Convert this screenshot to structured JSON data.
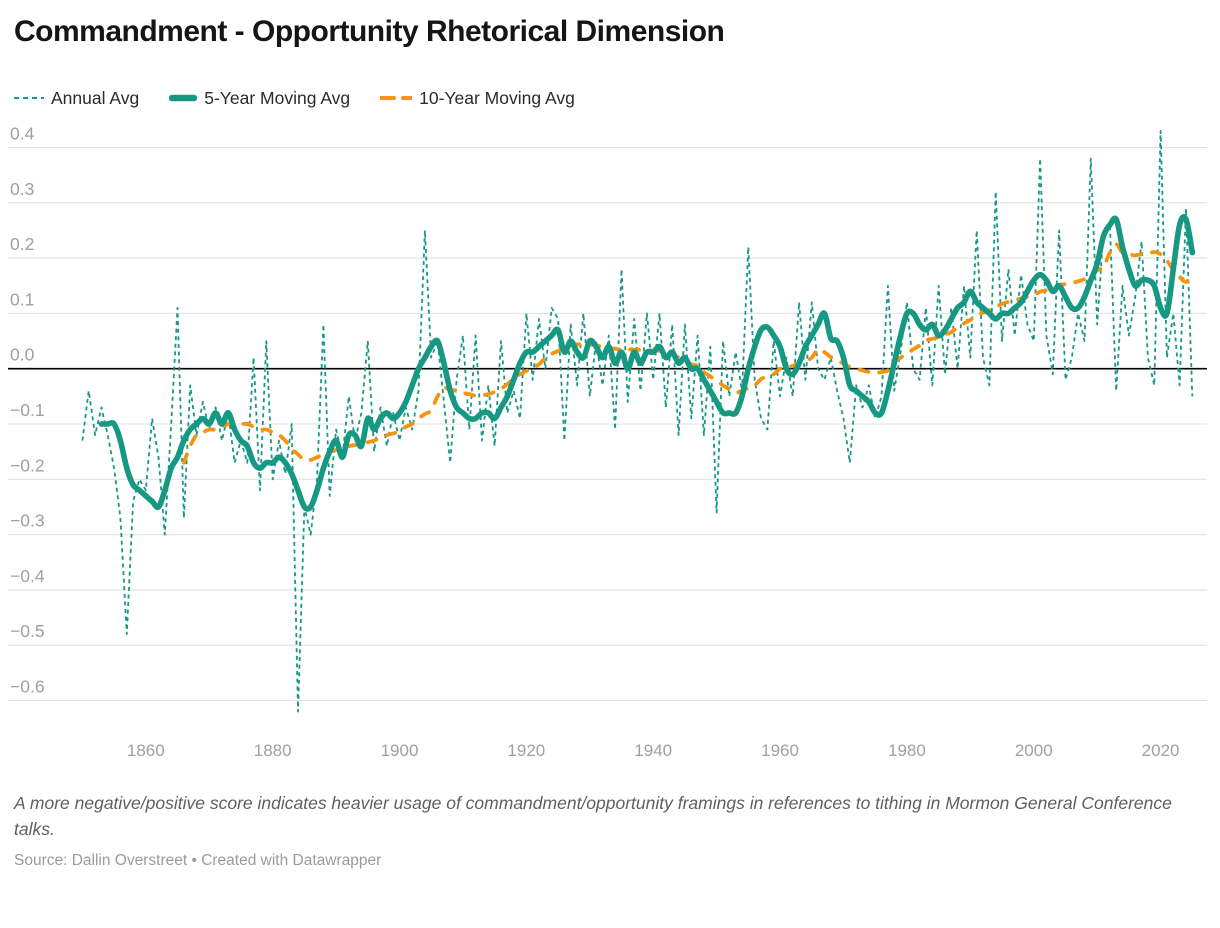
{
  "title": "Commandment - Opportunity Rhetorical Dimension",
  "legend": {
    "items": [
      {
        "label": "Annual Avg"
      },
      {
        "label": "5-Year Moving Avg"
      },
      {
        "label": "10-Year Moving Avg"
      }
    ]
  },
  "note": "A more negative/positive score indicates heavier usage of commandment/opportunity framings in references to tithing in Mormon General Conference talks.",
  "source": "Source: Dallin Overstreet • Created with Datawrapper",
  "colors": {
    "teal": "#179883",
    "orange": "#f4940f",
    "grid": "#e2e2e2",
    "zero": "#000000",
    "axis_text": "#a0a0a0"
  },
  "chart_data": {
    "type": "line",
    "title": "Commandment - Opportunity Rhetorical Dimension",
    "xlabel": "",
    "ylabel": "",
    "x_ticks": [
      1860,
      1880,
      1900,
      1920,
      1940,
      1960,
      1980,
      2000,
      2020
    ],
    "y_ticks": [
      0.4,
      0.3,
      0.2,
      0.1,
      0.0,
      -0.1,
      -0.2,
      -0.3,
      -0.4,
      -0.5,
      -0.6
    ],
    "ylim": [
      -0.66,
      0.45
    ],
    "xlim": [
      1848,
      2027
    ],
    "grid": true,
    "zero_line": true,
    "legend_position": "top",
    "series": [
      {
        "name": "Annual Avg",
        "style": "dashed-thin",
        "start_year": 1850,
        "values": [
          -0.13,
          -0.04,
          -0.12,
          -0.07,
          -0.12,
          -0.18,
          -0.27,
          -0.48,
          -0.24,
          -0.2,
          -0.22,
          -0.09,
          -0.16,
          -0.3,
          -0.1,
          0.11,
          -0.27,
          -0.03,
          -0.12,
          -0.06,
          -0.11,
          -0.07,
          -0.13,
          -0.08,
          -0.17,
          -0.13,
          -0.17,
          0.02,
          -0.22,
          0.05,
          -0.2,
          -0.13,
          -0.19,
          -0.1,
          -0.62,
          -0.25,
          -0.3,
          -0.2,
          0.08,
          -0.23,
          -0.11,
          -0.16,
          -0.05,
          -0.13,
          -0.08,
          0.05,
          -0.15,
          -0.07,
          -0.14,
          -0.08,
          -0.13,
          -0.07,
          -0.11,
          -0.04,
          0.25,
          0.02,
          0.05,
          -0.06,
          -0.17,
          -0.02,
          0.06,
          -0.11,
          0.06,
          -0.13,
          -0.03,
          -0.14,
          0.05,
          -0.08,
          -0.04,
          -0.09,
          0.1,
          -0.02,
          0.09,
          0.0,
          0.11,
          0.09,
          -0.13,
          0.08,
          -0.03,
          0.1,
          -0.05,
          0.05,
          -0.03,
          0.06,
          -0.11,
          0.18,
          -0.06,
          0.09,
          -0.04,
          0.1,
          -0.02,
          0.1,
          -0.07,
          0.08,
          -0.12,
          0.08,
          -0.09,
          0.06,
          -0.12,
          0.04,
          -0.26,
          0.05,
          -0.05,
          0.03,
          -0.04,
          0.22,
          -0.02,
          -0.09,
          -0.11,
          0.05,
          -0.05,
          0.02,
          -0.05,
          0.12,
          -0.02,
          0.12,
          0.0,
          -0.02,
          0.02,
          -0.04,
          -0.09,
          -0.17,
          -0.03,
          -0.07,
          -0.03,
          -0.09,
          -0.05,
          0.15,
          -0.04,
          0.03,
          0.12,
          0.0,
          -0.02,
          0.11,
          -0.03,
          0.15,
          -0.01,
          0.11,
          0.0,
          0.15,
          0.02,
          0.25,
          0.02,
          -0.03,
          0.32,
          0.05,
          0.18,
          0.06,
          0.17,
          0.08,
          0.05,
          0.38,
          0.06,
          -0.01,
          0.25,
          -0.02,
          0.02,
          0.1,
          0.05,
          0.38,
          0.08,
          0.25,
          0.26,
          -0.04,
          0.15,
          0.06,
          0.13,
          0.23,
          0.02,
          -0.03,
          0.43,
          0.02,
          0.1,
          -0.03,
          0.29,
          -0.05
        ]
      },
      {
        "name": "5-Year Moving Avg",
        "style": "solid-thick",
        "start_year": 1853,
        "values": [
          -0.1,
          -0.1,
          -0.1,
          -0.13,
          -0.18,
          -0.21,
          -0.22,
          -0.23,
          -0.24,
          -0.25,
          -0.22,
          -0.18,
          -0.16,
          -0.13,
          -0.11,
          -0.1,
          -0.09,
          -0.1,
          -0.08,
          -0.1,
          -0.08,
          -0.11,
          -0.13,
          -0.14,
          -0.17,
          -0.18,
          -0.17,
          -0.17,
          -0.16,
          -0.17,
          -0.19,
          -0.22,
          -0.25,
          -0.25,
          -0.22,
          -0.18,
          -0.15,
          -0.13,
          -0.16,
          -0.12,
          -0.12,
          -0.14,
          -0.09,
          -0.11,
          -0.09,
          -0.08,
          -0.09,
          -0.08,
          -0.06,
          -0.03,
          0.0,
          0.02,
          0.04,
          0.05,
          0.01,
          -0.04,
          -0.07,
          -0.08,
          -0.09,
          -0.09,
          -0.08,
          -0.08,
          -0.09,
          -0.07,
          -0.05,
          -0.02,
          0.01,
          0.03,
          0.03,
          0.04,
          0.05,
          0.06,
          0.07,
          0.03,
          0.05,
          0.03,
          0.02,
          0.05,
          0.04,
          0.02,
          0.04,
          0.01,
          0.03,
          0.0,
          0.03,
          0.01,
          0.03,
          0.03,
          0.04,
          0.02,
          0.03,
          0.01,
          0.02,
          0.0,
          0.0,
          -0.02,
          -0.04,
          -0.06,
          -0.08,
          -0.08,
          -0.08,
          -0.05,
          0.0,
          0.04,
          0.07,
          0.075,
          0.06,
          0.04,
          0.0,
          -0.01,
          0.01,
          0.04,
          0.06,
          0.08,
          0.1,
          0.055,
          0.05,
          0.02,
          -0.03,
          -0.04,
          -0.05,
          -0.06,
          -0.08,
          -0.08,
          -0.04,
          0.01,
          0.06,
          0.1,
          0.1,
          0.08,
          0.07,
          0.08,
          0.06,
          0.07,
          0.09,
          0.11,
          0.12,
          0.14,
          0.12,
          0.11,
          0.1,
          0.09,
          0.1,
          0.1,
          0.11,
          0.12,
          0.14,
          0.16,
          0.17,
          0.16,
          0.14,
          0.15,
          0.13,
          0.11,
          0.11,
          0.13,
          0.16,
          0.19,
          0.24,
          0.26,
          0.27,
          0.22,
          0.18,
          0.15,
          0.16,
          0.16,
          0.15,
          0.11,
          0.1,
          0.18,
          0.26,
          0.27,
          0.21
        ]
      },
      {
        "name": "10-Year Moving Avg",
        "style": "dashed-orange",
        "start_year": 1866,
        "values": [
          -0.17,
          -0.14,
          -0.12,
          -0.115,
          -0.11,
          -0.11,
          -0.105,
          -0.1,
          -0.1,
          -0.1,
          -0.1,
          -0.105,
          -0.11,
          -0.11,
          -0.115,
          -0.12,
          -0.13,
          -0.145,
          -0.155,
          -0.165,
          -0.165,
          -0.16,
          -0.155,
          -0.15,
          -0.147,
          -0.143,
          -0.14,
          -0.138,
          -0.135,
          -0.133,
          -0.13,
          -0.125,
          -0.12,
          -0.117,
          -0.113,
          -0.105,
          -0.1,
          -0.09,
          -0.082,
          -0.075,
          -0.05,
          -0.035,
          -0.038,
          -0.04,
          -0.044,
          -0.046,
          -0.049,
          -0.048,
          -0.046,
          -0.042,
          -0.036,
          -0.028,
          -0.018,
          -0.01,
          -0.004,
          0.002,
          0.008,
          0.02,
          0.027,
          0.032,
          0.039,
          0.042,
          0.044,
          0.044,
          0.044,
          0.042,
          0.04,
          0.038,
          0.036,
          0.035,
          0.035,
          0.034,
          0.034,
          0.033,
          0.033,
          0.032,
          0.029,
          0.025,
          0.02,
          0.014,
          0.008,
          0.005,
          -0.006,
          -0.014,
          -0.022,
          -0.03,
          -0.037,
          -0.043,
          -0.04,
          -0.035,
          -0.03,
          -0.019,
          -0.014,
          -0.01,
          0.0,
          0.002,
          0.005,
          0.01,
          0.014,
          0.02,
          0.035,
          0.03,
          0.021,
          0.015,
          0.009,
          0.003,
          0.0,
          -0.003,
          -0.006,
          -0.008,
          -0.006,
          -0.003,
          0.012,
          0.02,
          0.027,
          0.035,
          0.042,
          0.051,
          0.054,
          0.057,
          0.062,
          0.066,
          0.075,
          0.082,
          0.088,
          0.097,
          0.101,
          0.106,
          0.112,
          0.117,
          0.121,
          0.124,
          0.127,
          0.13,
          0.133,
          0.139,
          0.142,
          0.145,
          0.151,
          0.153,
          0.155,
          0.158,
          0.162,
          0.166,
          0.178,
          0.184,
          0.21,
          0.225,
          0.21,
          0.207,
          0.205,
          0.207,
          0.208,
          0.211,
          0.207,
          0.196,
          0.178,
          0.166,
          0.157,
          0.172
        ]
      }
    ]
  }
}
